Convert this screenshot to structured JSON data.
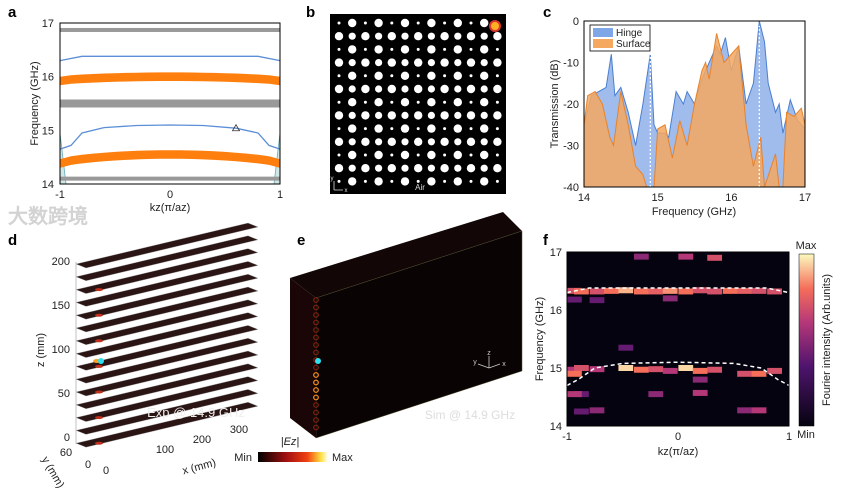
{
  "panels": {
    "a": "a",
    "b": "b",
    "c": "c",
    "d": "d",
    "e": "e",
    "f": "f"
  },
  "watermark": "大数跨境",
  "panel_b": {
    "bottom_label": "Air",
    "axis_x": "x",
    "axis_y": "y"
  },
  "panel_d": {
    "annotation": "Exp @ 14.9 GHz",
    "zlabel": "z (mm)",
    "xlabel": "x (mm)",
    "ylabel": "y (mm)",
    "zticks": [
      "200",
      "150",
      "100",
      "50",
      "0"
    ],
    "xticks": [
      "100",
      "200",
      "300"
    ],
    "yticks": [
      "60",
      "0",
      "0"
    ],
    "cbar_title": "|Ez|",
    "cbar_min": "Min",
    "cbar_max": "Max"
  },
  "panel_e": {
    "annotation": "Sim @ 14.9 GHz",
    "axes": [
      "z",
      "y",
      "x"
    ]
  },
  "chart_data": [
    {
      "type": "line",
      "panel": "a",
      "xlabel": "kz(π/az)",
      "ylabel": "Frequency (GHz)",
      "xlim": [
        -1,
        1
      ],
      "ylim": [
        14,
        17
      ],
      "xticks": [
        "-1",
        "0",
        "1"
      ],
      "yticks": [
        "14",
        "15",
        "16",
        "17"
      ],
      "bands": [
        {
          "kind": "bulk",
          "color": "#999999",
          "freq": 16.87
        },
        {
          "kind": "bulk",
          "color": "#999999",
          "freq": 15.5
        },
        {
          "kind": "bulk",
          "color": "#999999",
          "freq": 14.1
        },
        {
          "kind": "surface",
          "color": "#ff7f0e",
          "center": 16.0,
          "edge": 15.92
        },
        {
          "kind": "surface",
          "color": "#ff7f0e",
          "center": 14.55,
          "edge": 14.38
        }
      ],
      "series": [
        {
          "name": "hinge-upper",
          "color": "#5b8fd6",
          "x": [
            -1,
            -0.8,
            -0.5,
            0,
            0.5,
            0.8,
            1
          ],
          "y": [
            16.3,
            16.38,
            16.38,
            16.38,
            16.38,
            16.38,
            16.3
          ]
        },
        {
          "name": "hinge-lower",
          "color": "#5b8fd6",
          "x": [
            -1,
            -0.9,
            -0.8,
            -0.6,
            -0.3,
            0,
            0.3,
            0.6,
            0.8,
            0.9,
            1
          ],
          "y": [
            14.65,
            14.72,
            14.95,
            15.05,
            15.09,
            15.1,
            15.09,
            15.04,
            14.95,
            14.72,
            14.65
          ]
        }
      ],
      "marker": {
        "symbol": "triangle",
        "x": 0.6,
        "y": 15.03
      }
    },
    {
      "type": "area",
      "panel": "c",
      "xlabel": "Frequency (GHz)",
      "ylabel": "Transmission (dB)",
      "xlim": [
        14,
        17
      ],
      "ylim": [
        -40,
        0
      ],
      "xticks": [
        "14",
        "15",
        "16",
        "17"
      ],
      "yticks": [
        "0",
        "-10",
        "-20",
        "-30",
        "-40"
      ],
      "legend": "top-left",
      "markers_x": [
        14.9,
        16.38
      ],
      "series": [
        {
          "name": "Hinge",
          "color": "#7fa6e6",
          "x": [
            14,
            14.1,
            14.2,
            14.3,
            14.37,
            14.42,
            14.5,
            14.6,
            14.7,
            14.8,
            14.9,
            14.95,
            15.0,
            15.1,
            15.15,
            15.25,
            15.35,
            15.4,
            15.5,
            15.6,
            15.7,
            15.8,
            15.85,
            15.92,
            16.0,
            16.1,
            16.2,
            16.3,
            16.38,
            16.45,
            16.5,
            16.6,
            16.65,
            16.7,
            16.8,
            16.9,
            17
          ],
          "y": [
            -25,
            -18,
            -17,
            -16,
            -8,
            -18,
            -16,
            -22,
            -30,
            -20,
            -8,
            -25,
            -27,
            -27,
            -28,
            -17,
            -20,
            -17,
            -20,
            -14,
            -10,
            -6,
            -8,
            -4,
            -12,
            -6,
            -20,
            -15,
            0,
            -5,
            -15,
            -22,
            -20,
            -27,
            -19,
            -24,
            -26
          ]
        },
        {
          "name": "Surface",
          "color": "#f4a860",
          "x": [
            14,
            14.05,
            14.15,
            14.25,
            14.35,
            14.4,
            14.5,
            14.6,
            14.7,
            14.8,
            14.85,
            14.95,
            15.0,
            15.1,
            15.2,
            15.3,
            15.4,
            15.5,
            15.6,
            15.65,
            15.7,
            15.8,
            15.9,
            16.0,
            16.1,
            16.2,
            16.3,
            16.4,
            16.45,
            16.6,
            16.65,
            16.7,
            16.75,
            16.85,
            16.95,
            17
          ],
          "y": [
            -25,
            -18,
            -17,
            -20,
            -28,
            -30,
            -17,
            -25,
            -35,
            -37,
            -40,
            -40,
            -26,
            -25,
            -33,
            -24,
            -30,
            -20,
            -12,
            -10,
            -14,
            -3,
            -10,
            -8,
            -6,
            -25,
            -35,
            -28,
            -40,
            -32,
            -40,
            -40,
            -22,
            -23,
            -21,
            -25
          ]
        }
      ]
    },
    {
      "type": "heatmap",
      "panel": "f",
      "xlabel": "kz(π/az)",
      "ylabel": "Frequency (GHz)",
      "xlim": [
        -1,
        1
      ],
      "ylim": [
        14,
        17
      ],
      "xticks": [
        "-1",
        "0",
        "1"
      ],
      "yticks": [
        "14",
        "15",
        "16",
        "17"
      ],
      "colorbar": {
        "label": "Fourier intensity (Arb.units)",
        "min": "Min",
        "max": "Max"
      },
      "cells_kz_freq_intensity": [
        [
          -1,
          16.33,
          0.7
        ],
        [
          -0.87,
          16.32,
          0.8
        ],
        [
          -0.73,
          16.32,
          0.7
        ],
        [
          -0.6,
          16.33,
          0.8
        ],
        [
          -0.47,
          16.34,
          0.9
        ],
        [
          -0.33,
          16.32,
          0.8
        ],
        [
          -0.2,
          16.32,
          0.75
        ],
        [
          -0.07,
          16.33,
          0.85
        ],
        [
          0.07,
          16.32,
          0.8
        ],
        [
          0.2,
          16.34,
          0.7
        ],
        [
          0.33,
          16.32,
          0.7
        ],
        [
          0.47,
          16.33,
          0.8
        ],
        [
          0.6,
          16.33,
          0.75
        ],
        [
          0.73,
          16.33,
          0.7
        ],
        [
          0.87,
          16.32,
          0.7
        ],
        [
          -0.33,
          16.92,
          0.5
        ],
        [
          0.07,
          16.92,
          0.6
        ],
        [
          0.33,
          16.9,
          0.7
        ],
        [
          -0.07,
          16.2,
          0.5
        ],
        [
          -1,
          16.18,
          0.4
        ],
        [
          -0.73,
          16.17,
          0.4
        ],
        [
          -0.47,
          15.35,
          0.4
        ],
        [
          -1,
          14.97,
          0.6
        ],
        [
          -0.87,
          15.0,
          0.7
        ],
        [
          -0.73,
          14.98,
          0.6
        ],
        [
          -0.47,
          15.0,
          0.95
        ],
        [
          -0.33,
          14.97,
          0.8
        ],
        [
          -0.2,
          14.98,
          0.7
        ],
        [
          -0.07,
          14.95,
          0.6
        ],
        [
          0.07,
          15.0,
          0.95
        ],
        [
          0.2,
          14.95,
          0.8
        ],
        [
          0.33,
          14.97,
          0.7
        ],
        [
          0.6,
          14.9,
          0.7
        ],
        [
          0.73,
          14.9,
          0.8
        ],
        [
          0.87,
          14.95,
          0.7
        ],
        [
          -1,
          14.9,
          0.8
        ],
        [
          -0.87,
          14.55,
          0.4
        ],
        [
          -1,
          14.55,
          0.6
        ],
        [
          -0.2,
          14.55,
          0.5
        ],
        [
          0.2,
          14.57,
          0.6
        ],
        [
          -0.73,
          14.27,
          0.5
        ],
        [
          0.6,
          14.27,
          0.5
        ],
        [
          0.73,
          14.27,
          0.6
        ],
        [
          -0.87,
          14.25,
          0.4
        ],
        [
          0.2,
          14.8,
          0.5
        ]
      ],
      "dashed_guides": [
        {
          "x": [
            -1,
            -0.8,
            -0.4,
            0,
            0.4,
            0.8,
            1
          ],
          "y": [
            16.3,
            16.38,
            16.38,
            16.38,
            16.38,
            16.38,
            16.3
          ]
        },
        {
          "x": [
            -1,
            -0.9,
            -0.75,
            -0.5,
            0,
            0.5,
            0.75,
            0.9,
            1
          ],
          "y": [
            14.7,
            14.8,
            15.0,
            15.08,
            15.1,
            15.08,
            15.0,
            14.8,
            14.7
          ]
        }
      ]
    }
  ]
}
